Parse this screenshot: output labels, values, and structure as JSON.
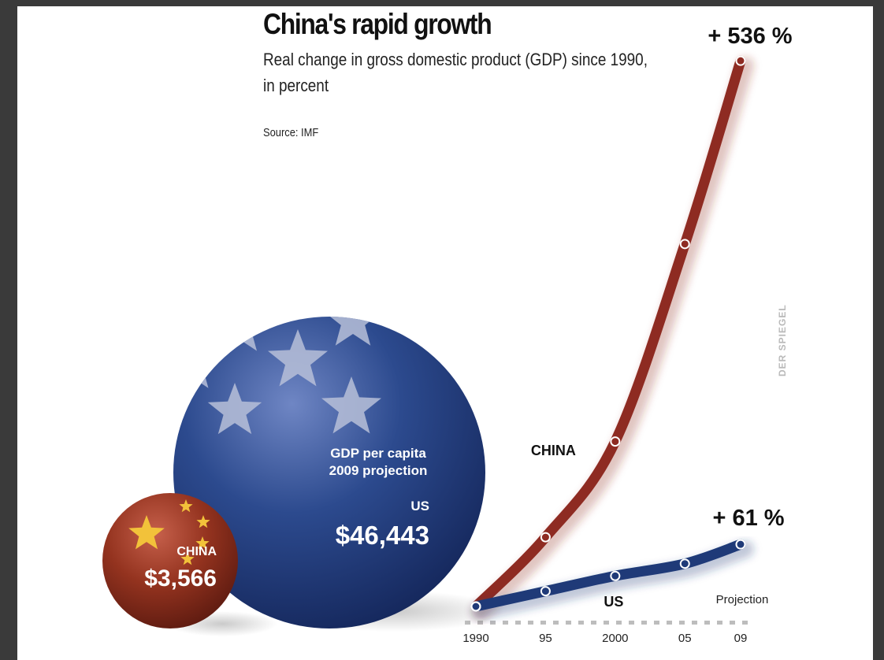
{
  "header": {
    "title": "China's rapid growth",
    "subtitle_line1": "Real change in gross domestic product (GDP) since 1990,",
    "subtitle_line2": "in percent",
    "source": "Source: IMF"
  },
  "watermark": "DER SPIEGEL",
  "spheres": {
    "caption_line1": "GDP per capita",
    "caption_line2": "2009 projection",
    "us_label": "US",
    "us_value": "$46,443",
    "us_amount": 46443,
    "china_label": "CHINA",
    "china_value": "$3,566",
    "china_amount": 3566
  },
  "chart_data": {
    "type": "line",
    "title": "China's rapid growth",
    "subtitle": "Real change in gross domestic product (GDP) since 1990, in percent",
    "x": [
      1990,
      1995,
      2000,
      2005,
      2009
    ],
    "x_tick_labels": [
      "1990",
      "95",
      "2000",
      "05",
      "09"
    ],
    "projection_label": "Projection",
    "ylim": [
      0,
      540
    ],
    "grid": false,
    "series": [
      {
        "name": "CHINA",
        "color": "#8e2b22",
        "values": [
          0,
          68,
          162,
          356,
          536
        ],
        "end_label": "+ 536 %"
      },
      {
        "name": "US",
        "color": "#1f3a78",
        "values": [
          0,
          15,
          30,
          42,
          61
        ],
        "end_label": "+ 61 %"
      }
    ]
  },
  "colors": {
    "us_blue": "#1f3a78",
    "china_red": "#8e2b22",
    "background": "#3a3a3a"
  }
}
